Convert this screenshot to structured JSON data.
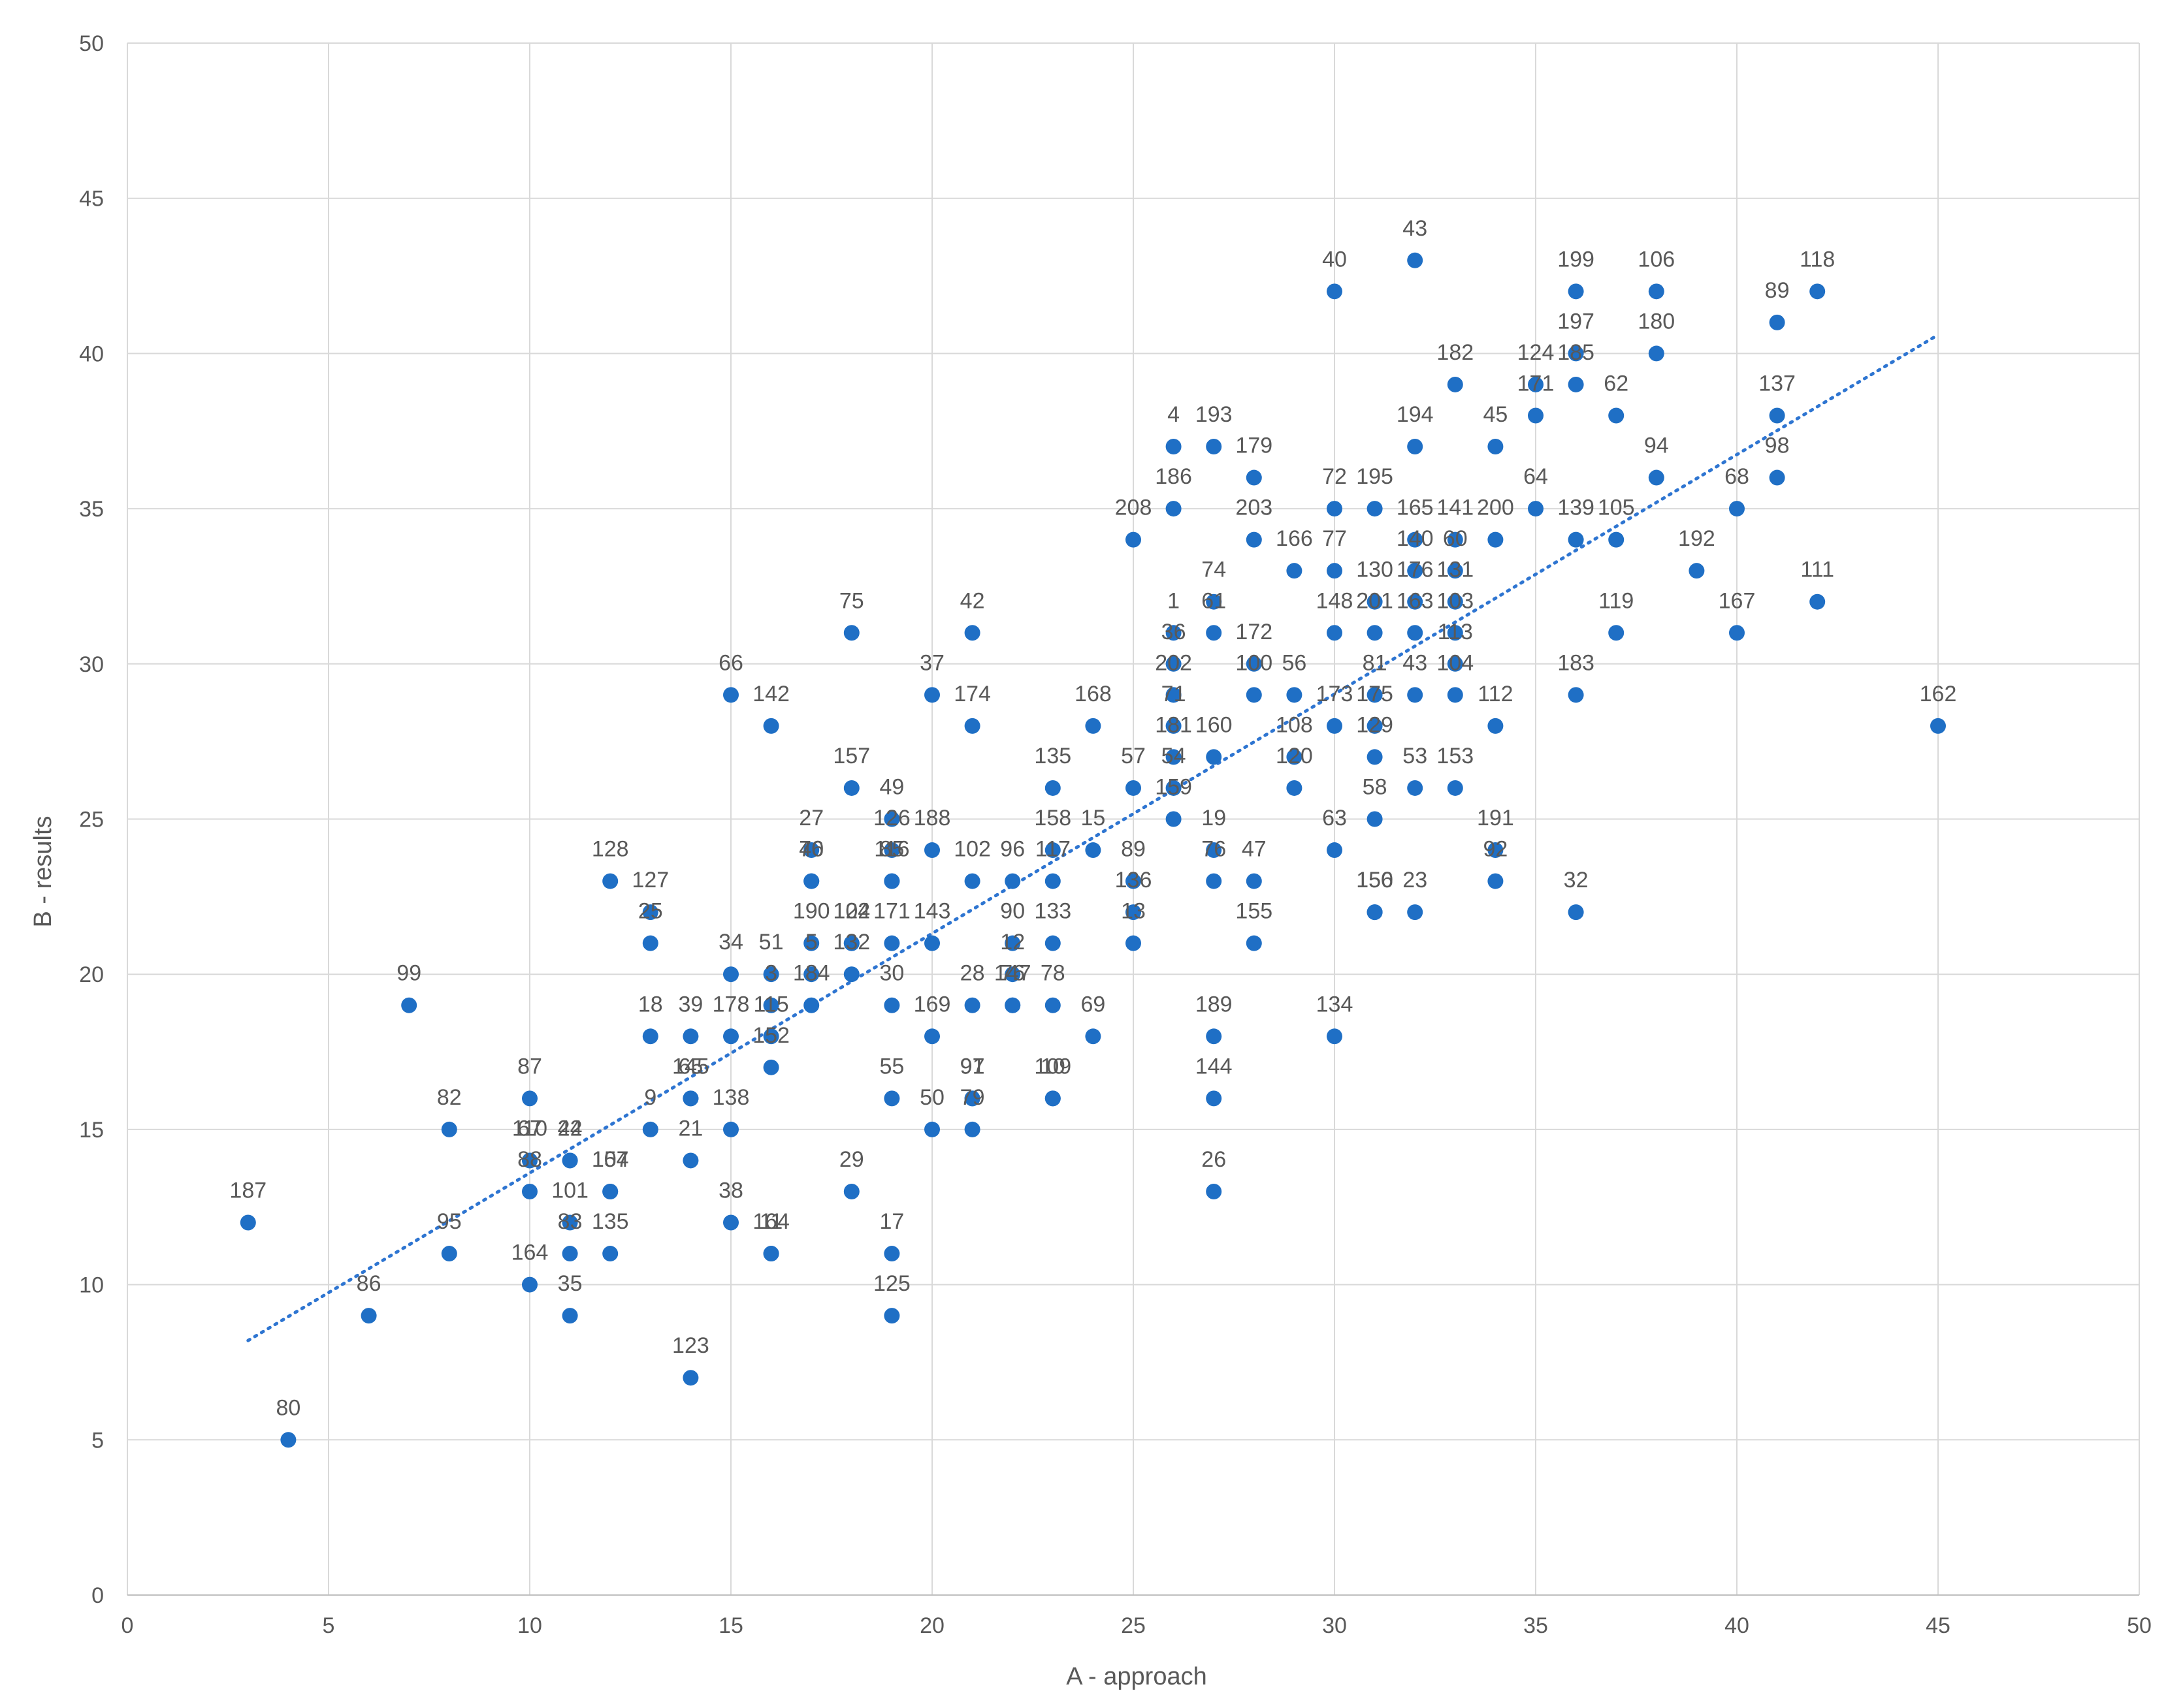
{
  "colors": {
    "point": "#1f6fc5",
    "trendline": "#2e75d1",
    "grid": "#d9d9d9",
    "axis": "#bfbfbf",
    "text": "#595959",
    "background": "#ffffff"
  },
  "chart_data": {
    "type": "scatter",
    "title": "",
    "xlabel": "A - approach",
    "ylabel": "B - results",
    "xlim": [
      0,
      50
    ],
    "ylim": [
      0,
      50
    ],
    "xticks": [
      0,
      5,
      10,
      15,
      20,
      25,
      30,
      35,
      40,
      45,
      50
    ],
    "yticks": [
      0,
      5,
      10,
      15,
      20,
      25,
      30,
      35,
      40,
      45,
      50
    ],
    "grid": true,
    "legend": "none",
    "trendline": {
      "type": "linear",
      "style": "dotted",
      "x": [
        3,
        45
      ],
      "y": [
        8.2,
        40.6
      ]
    },
    "points": [
      {
        "label": "187",
        "x": 3,
        "y": 12
      },
      {
        "label": "80",
        "x": 4,
        "y": 5
      },
      {
        "label": "86",
        "x": 6,
        "y": 9
      },
      {
        "label": "99",
        "x": 7,
        "y": 19
      },
      {
        "label": "82",
        "x": 8,
        "y": 15
      },
      {
        "label": "95",
        "x": 8,
        "y": 11
      },
      {
        "label": "87",
        "x": 10,
        "y": 16
      },
      {
        "label": "67",
        "x": 10,
        "y": 14
      },
      {
        "label": "110",
        "x": 10,
        "y": 14
      },
      {
        "label": "88",
        "x": 10,
        "y": 13
      },
      {
        "label": "164",
        "x": 10,
        "y": 10
      },
      {
        "label": "22",
        "x": 11,
        "y": 14
      },
      {
        "label": "44",
        "x": 11,
        "y": 14
      },
      {
        "label": "101",
        "x": 11,
        "y": 12
      },
      {
        "label": "83",
        "x": 11,
        "y": 11
      },
      {
        "label": "35",
        "x": 11,
        "y": 9
      },
      {
        "label": "154",
        "x": 12,
        "y": 13
      },
      {
        "label": "107",
        "x": 12,
        "y": 13
      },
      {
        "label": "135",
        "x": 12,
        "y": 11
      },
      {
        "label": "128",
        "x": 12,
        "y": 23
      },
      {
        "label": "127",
        "x": 13,
        "y": 22
      },
      {
        "label": "25",
        "x": 13,
        "y": 21
      },
      {
        "label": "18",
        "x": 13,
        "y": 18
      },
      {
        "label": "9",
        "x": 13,
        "y": 15
      },
      {
        "label": "39",
        "x": 14,
        "y": 18
      },
      {
        "label": "145",
        "x": 14,
        "y": 16
      },
      {
        "label": "65",
        "x": 14,
        "y": 16
      },
      {
        "label": "21",
        "x": 14,
        "y": 14
      },
      {
        "label": "123",
        "x": 14,
        "y": 7
      },
      {
        "label": "66",
        "x": 15,
        "y": 29
      },
      {
        "label": "34",
        "x": 15,
        "y": 20
      },
      {
        "label": "178",
        "x": 15,
        "y": 18
      },
      {
        "label": "138",
        "x": 15,
        "y": 15
      },
      {
        "label": "38",
        "x": 15,
        "y": 12
      },
      {
        "label": "142",
        "x": 16,
        "y": 28
      },
      {
        "label": "51",
        "x": 16,
        "y": 20
      },
      {
        "label": "3",
        "x": 16,
        "y": 19
      },
      {
        "label": "115",
        "x": 16,
        "y": 18
      },
      {
        "label": "152",
        "x": 16,
        "y": 17
      },
      {
        "label": "11",
        "x": 16,
        "y": 11
      },
      {
        "label": "164",
        "x": 16,
        "y": 11
      },
      {
        "label": "27",
        "x": 17,
        "y": 24
      },
      {
        "label": "46",
        "x": 17,
        "y": 23
      },
      {
        "label": "70",
        "x": 17,
        "y": 23
      },
      {
        "label": "190",
        "x": 17,
        "y": 21
      },
      {
        "label": "5",
        "x": 17,
        "y": 20
      },
      {
        "label": "184",
        "x": 17,
        "y": 19
      },
      {
        "label": "75",
        "x": 18,
        "y": 31
      },
      {
        "label": "157",
        "x": 18,
        "y": 26
      },
      {
        "label": "104",
        "x": 18,
        "y": 21
      },
      {
        "label": "122",
        "x": 18,
        "y": 21
      },
      {
        "label": "132",
        "x": 18,
        "y": 20
      },
      {
        "label": "29",
        "x": 18,
        "y": 13
      },
      {
        "label": "49",
        "x": 19,
        "y": 25
      },
      {
        "label": "126",
        "x": 19,
        "y": 24
      },
      {
        "label": "116",
        "x": 19,
        "y": 23
      },
      {
        "label": "85",
        "x": 19,
        "y": 23
      },
      {
        "label": "171",
        "x": 19,
        "y": 21
      },
      {
        "label": "30",
        "x": 19,
        "y": 19
      },
      {
        "label": "55",
        "x": 19,
        "y": 16
      },
      {
        "label": "17",
        "x": 19,
        "y": 11
      },
      {
        "label": "125",
        "x": 19,
        "y": 9
      },
      {
        "label": "37",
        "x": 20,
        "y": 29
      },
      {
        "label": "188",
        "x": 20,
        "y": 24
      },
      {
        "label": "143",
        "x": 20,
        "y": 21
      },
      {
        "label": "169",
        "x": 20,
        "y": 18
      },
      {
        "label": "50",
        "x": 20,
        "y": 15
      },
      {
        "label": "42",
        "x": 21,
        "y": 31
      },
      {
        "label": "174",
        "x": 21,
        "y": 28
      },
      {
        "label": "102",
        "x": 21,
        "y": 23
      },
      {
        "label": "28",
        "x": 21,
        "y": 19
      },
      {
        "label": "91",
        "x": 21,
        "y": 16
      },
      {
        "label": "97",
        "x": 21,
        "y": 16
      },
      {
        "label": "79",
        "x": 21,
        "y": 15
      },
      {
        "label": "96",
        "x": 22,
        "y": 23
      },
      {
        "label": "90",
        "x": 22,
        "y": 21
      },
      {
        "label": "12",
        "x": 22,
        "y": 20
      },
      {
        "label": "147",
        "x": 22,
        "y": 19
      },
      {
        "label": "76",
        "x": 22,
        "y": 19
      },
      {
        "label": "135",
        "x": 23,
        "y": 26
      },
      {
        "label": "158",
        "x": 23,
        "y": 24
      },
      {
        "label": "117",
        "x": 23,
        "y": 23
      },
      {
        "label": "133",
        "x": 23,
        "y": 21
      },
      {
        "label": "78",
        "x": 23,
        "y": 19
      },
      {
        "label": "10",
        "x": 23,
        "y": 16
      },
      {
        "label": "109",
        "x": 23,
        "y": 16
      },
      {
        "label": "168",
        "x": 24,
        "y": 28
      },
      {
        "label": "15",
        "x": 24,
        "y": 24
      },
      {
        "label": "69",
        "x": 24,
        "y": 18
      },
      {
        "label": "208",
        "x": 25,
        "y": 34
      },
      {
        "label": "57",
        "x": 25,
        "y": 26
      },
      {
        "label": "89",
        "x": 25,
        "y": 23
      },
      {
        "label": "136",
        "x": 25,
        "y": 22
      },
      {
        "label": "13",
        "x": 25,
        "y": 21
      },
      {
        "label": "4",
        "x": 26,
        "y": 37
      },
      {
        "label": "186",
        "x": 26,
        "y": 35
      },
      {
        "label": "1",
        "x": 26,
        "y": 31
      },
      {
        "label": "36",
        "x": 26,
        "y": 30
      },
      {
        "label": "202",
        "x": 26,
        "y": 29
      },
      {
        "label": "71",
        "x": 26,
        "y": 28
      },
      {
        "label": "181",
        "x": 26,
        "y": 27
      },
      {
        "label": "54",
        "x": 26,
        "y": 26
      },
      {
        "label": "159",
        "x": 26,
        "y": 25
      },
      {
        "label": "193",
        "x": 27,
        "y": 37
      },
      {
        "label": "74",
        "x": 27,
        "y": 32
      },
      {
        "label": "61",
        "x": 27,
        "y": 31
      },
      {
        "label": "160",
        "x": 27,
        "y": 27
      },
      {
        "label": "19",
        "x": 27,
        "y": 24
      },
      {
        "label": "76",
        "x": 27,
        "y": 23
      },
      {
        "label": "189",
        "x": 27,
        "y": 18
      },
      {
        "label": "144",
        "x": 27,
        "y": 16
      },
      {
        "label": "26",
        "x": 27,
        "y": 13
      },
      {
        "label": "179",
        "x": 28,
        "y": 36
      },
      {
        "label": "203",
        "x": 28,
        "y": 34
      },
      {
        "label": "172",
        "x": 28,
        "y": 30
      },
      {
        "label": "100",
        "x": 28,
        "y": 29
      },
      {
        "label": "47",
        "x": 28,
        "y": 23
      },
      {
        "label": "155",
        "x": 28,
        "y": 21
      },
      {
        "label": "166",
        "x": 29,
        "y": 33
      },
      {
        "label": "56",
        "x": 29,
        "y": 29
      },
      {
        "label": "108",
        "x": 29,
        "y": 27
      },
      {
        "label": "120",
        "x": 29,
        "y": 26
      },
      {
        "label": "40",
        "x": 30,
        "y": 42
      },
      {
        "label": "72",
        "x": 30,
        "y": 35
      },
      {
        "label": "77",
        "x": 30,
        "y": 33
      },
      {
        "label": "148",
        "x": 30,
        "y": 31
      },
      {
        "label": "173",
        "x": 30,
        "y": 28
      },
      {
        "label": "63",
        "x": 30,
        "y": 24
      },
      {
        "label": "134",
        "x": 30,
        "y": 18
      },
      {
        "label": "195",
        "x": 31,
        "y": 35
      },
      {
        "label": "130",
        "x": 31,
        "y": 32
      },
      {
        "label": "201",
        "x": 31,
        "y": 31
      },
      {
        "label": "81",
        "x": 31,
        "y": 29
      },
      {
        "label": "175",
        "x": 31,
        "y": 28
      },
      {
        "label": "129",
        "x": 31,
        "y": 27
      },
      {
        "label": "58",
        "x": 31,
        "y": 25
      },
      {
        "label": "150",
        "x": 31,
        "y": 22
      },
      {
        "label": "156",
        "x": 31,
        "y": 22
      },
      {
        "label": "43",
        "x": 32,
        "y": 43
      },
      {
        "label": "194",
        "x": 32,
        "y": 37
      },
      {
        "label": "165",
        "x": 32,
        "y": 34
      },
      {
        "label": "140",
        "x": 32,
        "y": 33
      },
      {
        "label": "176",
        "x": 32,
        "y": 32
      },
      {
        "label": "163",
        "x": 32,
        "y": 31
      },
      {
        "label": "43",
        "x": 32,
        "y": 29
      },
      {
        "label": "53",
        "x": 32,
        "y": 26
      },
      {
        "label": "23",
        "x": 32,
        "y": 22
      },
      {
        "label": "182",
        "x": 33,
        "y": 39
      },
      {
        "label": "141",
        "x": 33,
        "y": 34
      },
      {
        "label": "60",
        "x": 33,
        "y": 33
      },
      {
        "label": "131",
        "x": 33,
        "y": 32
      },
      {
        "label": "103",
        "x": 33,
        "y": 31
      },
      {
        "label": "113",
        "x": 33,
        "y": 30
      },
      {
        "label": "104",
        "x": 33,
        "y": 29
      },
      {
        "label": "153",
        "x": 33,
        "y": 26
      },
      {
        "label": "45",
        "x": 34,
        "y": 37
      },
      {
        "label": "200",
        "x": 34,
        "y": 34
      },
      {
        "label": "112",
        "x": 34,
        "y": 28
      },
      {
        "label": "191",
        "x": 34,
        "y": 24
      },
      {
        "label": "92",
        "x": 34,
        "y": 23
      },
      {
        "label": "124",
        "x": 35,
        "y": 39
      },
      {
        "label": "171",
        "x": 35,
        "y": 38
      },
      {
        "label": "64",
        "x": 35,
        "y": 35
      },
      {
        "label": "199",
        "x": 36,
        "y": 42
      },
      {
        "label": "197",
        "x": 36,
        "y": 40
      },
      {
        "label": "185",
        "x": 36,
        "y": 39
      },
      {
        "label": "139",
        "x": 36,
        "y": 34
      },
      {
        "label": "183",
        "x": 36,
        "y": 29
      },
      {
        "label": "32",
        "x": 36,
        "y": 22
      },
      {
        "label": "62",
        "x": 37,
        "y": 38
      },
      {
        "label": "105",
        "x": 37,
        "y": 34
      },
      {
        "label": "119",
        "x": 37,
        "y": 31
      },
      {
        "label": "106",
        "x": 38,
        "y": 42
      },
      {
        "label": "180",
        "x": 38,
        "y": 40
      },
      {
        "label": "94",
        "x": 38,
        "y": 36
      },
      {
        "label": "192",
        "x": 39,
        "y": 33
      },
      {
        "label": "68",
        "x": 40,
        "y": 35
      },
      {
        "label": "167",
        "x": 40,
        "y": 31
      },
      {
        "label": "89",
        "x": 41,
        "y": 41
      },
      {
        "label": "137",
        "x": 41,
        "y": 38
      },
      {
        "label": "98",
        "x": 41,
        "y": 36
      },
      {
        "label": "118",
        "x": 42,
        "y": 42
      },
      {
        "label": "111",
        "x": 42,
        "y": 32
      },
      {
        "label": "162",
        "x": 45,
        "y": 28
      }
    ]
  }
}
